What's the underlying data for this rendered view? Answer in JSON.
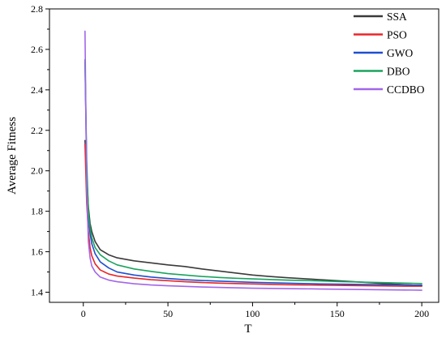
{
  "chart_data": {
    "type": "line",
    "title": "",
    "xlabel": "T",
    "ylabel": "Average Fitness",
    "xlim": [
      -20,
      210
    ],
    "ylim": [
      1.35,
      2.8
    ],
    "xticks": [
      0,
      50,
      100,
      150,
      200
    ],
    "yticks": [
      1.4,
      1.6,
      1.8,
      2.0,
      2.2,
      2.4,
      2.6,
      2.8
    ],
    "ytick_labels": [
      "1.4",
      "1.6",
      "1.8",
      "2.0",
      "2.2",
      "2.4",
      "2.6",
      "2.8"
    ],
    "grid": false,
    "legend_position": "top-right",
    "series": [
      {
        "name": "SSA",
        "color": "#3a3a3a",
        "x": [
          1,
          2,
          3,
          4,
          5,
          7,
          10,
          15,
          20,
          30,
          40,
          50,
          60,
          70,
          80,
          90,
          100,
          110,
          120,
          130,
          140,
          150,
          160,
          170,
          180,
          190,
          200
        ],
        "y": [
          2.15,
          1.98,
          1.82,
          1.74,
          1.7,
          1.65,
          1.61,
          1.585,
          1.57,
          1.555,
          1.545,
          1.535,
          1.527,
          1.515,
          1.505,
          1.495,
          1.485,
          1.478,
          1.472,
          1.467,
          1.462,
          1.457,
          1.452,
          1.447,
          1.442,
          1.437,
          1.432
        ]
      },
      {
        "name": "PSO",
        "color": "#e8262a",
        "x": [
          1,
          2,
          3,
          4,
          5,
          7,
          10,
          15,
          20,
          30,
          40,
          50,
          60,
          70,
          80,
          90,
          100,
          110,
          120,
          130,
          140,
          150,
          160,
          170,
          180,
          190,
          200
        ],
        "y": [
          2.13,
          1.84,
          1.7,
          1.62,
          1.58,
          1.54,
          1.51,
          1.49,
          1.48,
          1.47,
          1.462,
          1.457,
          1.452,
          1.448,
          1.445,
          1.443,
          1.441,
          1.439,
          1.437,
          1.436,
          1.435,
          1.434,
          1.433,
          1.432,
          1.431,
          1.43,
          1.43
        ]
      },
      {
        "name": "GWO",
        "color": "#1f4fd1",
        "x": [
          1,
          2,
          3,
          4,
          5,
          7,
          10,
          15,
          20,
          30,
          40,
          50,
          60,
          70,
          80,
          90,
          100,
          110,
          120,
          130,
          140,
          150,
          160,
          170,
          180,
          190,
          200
        ],
        "y": [
          2.54,
          2.0,
          1.78,
          1.69,
          1.64,
          1.59,
          1.55,
          1.52,
          1.5,
          1.485,
          1.475,
          1.468,
          1.462,
          1.458,
          1.455,
          1.452,
          1.449,
          1.447,
          1.445,
          1.443,
          1.441,
          1.44,
          1.439,
          1.438,
          1.437,
          1.436,
          1.435
        ]
      },
      {
        "name": "DBO",
        "color": "#1aa35e",
        "x": [
          1,
          2,
          3,
          4,
          5,
          7,
          10,
          15,
          20,
          30,
          40,
          50,
          60,
          70,
          80,
          90,
          100,
          110,
          120,
          130,
          140,
          150,
          160,
          170,
          180,
          190,
          200
        ],
        "y": [
          2.55,
          2.05,
          1.8,
          1.72,
          1.67,
          1.62,
          1.585,
          1.555,
          1.535,
          1.515,
          1.503,
          1.492,
          1.485,
          1.478,
          1.473,
          1.469,
          1.466,
          1.463,
          1.46,
          1.458,
          1.456,
          1.453,
          1.451,
          1.449,
          1.447,
          1.445,
          1.443
        ]
      },
      {
        "name": "CCDBO",
        "color": "#a366e8",
        "x": [
          1,
          2,
          3,
          4,
          5,
          7,
          10,
          15,
          20,
          30,
          40,
          50,
          60,
          70,
          80,
          90,
          100,
          110,
          120,
          130,
          140,
          150,
          160,
          170,
          180,
          190,
          200
        ],
        "y": [
          2.69,
          1.9,
          1.65,
          1.57,
          1.53,
          1.5,
          1.475,
          1.46,
          1.452,
          1.442,
          1.436,
          1.432,
          1.429,
          1.426,
          1.424,
          1.422,
          1.42,
          1.419,
          1.418,
          1.417,
          1.416,
          1.415,
          1.414,
          1.413,
          1.412,
          1.411,
          1.41
        ]
      }
    ]
  }
}
